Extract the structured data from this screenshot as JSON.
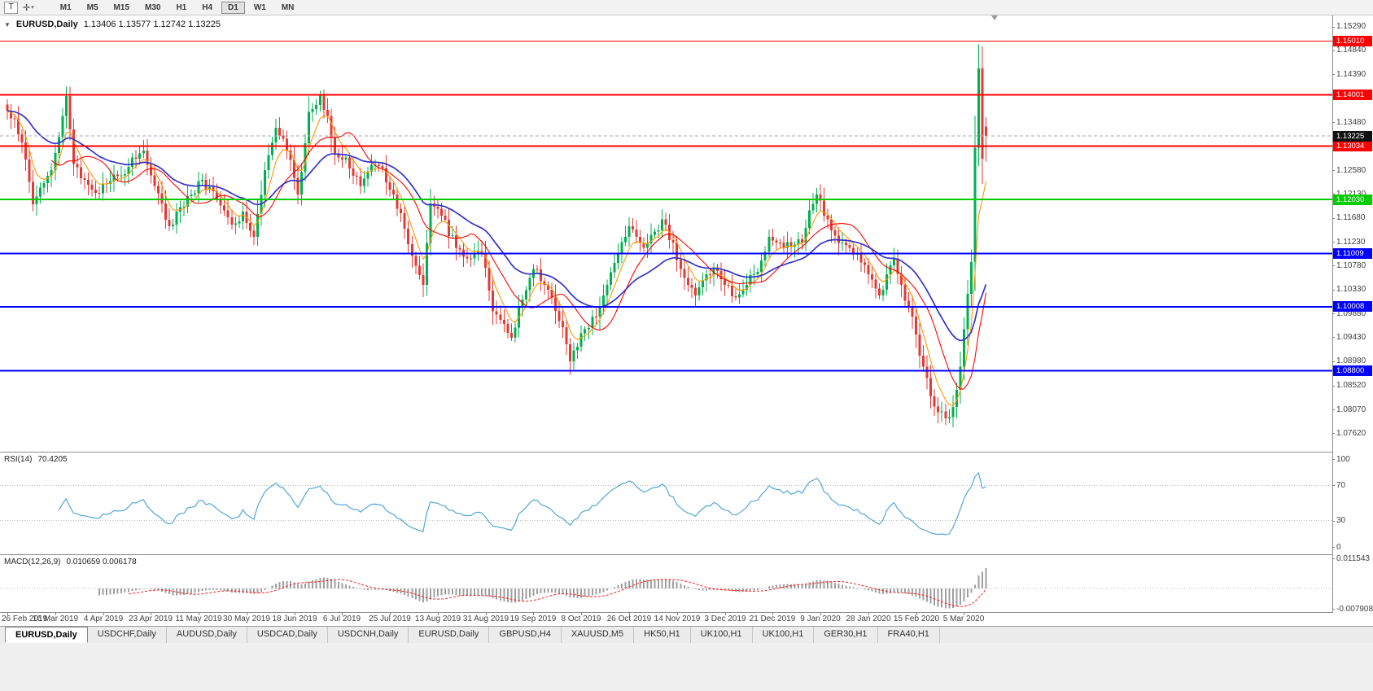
{
  "toolbar": {
    "tool_buttons": [
      {
        "name": "text-tool",
        "label": "T"
      },
      {
        "name": "cursor-tool",
        "label": "✛"
      }
    ],
    "timeframes": [
      "M1",
      "M5",
      "M15",
      "M30",
      "H1",
      "H4",
      "D1",
      "W1",
      "MN"
    ],
    "active_timeframe": "D1"
  },
  "chart": {
    "collapse_icon": "▼",
    "symbol": "EURUSD,Daily",
    "ohlc_text": "1.13406 1.13577 1.12742 1.13225",
    "y_ticks": [
      "1.15290",
      "1.14840",
      "1.14390",
      "1.13940",
      "1.13480",
      "1.13030",
      "1.12580",
      "1.12130",
      "1.11680",
      "1.11230",
      "1.10780",
      "1.10330",
      "1.09880",
      "1.09430",
      "1.08980",
      "1.08520",
      "1.08070",
      "1.07620"
    ],
    "levels": [
      {
        "label": "1.15010",
        "value": 1.1501,
        "color": "#ff0000",
        "width": 1
      },
      {
        "label": "1.14001",
        "value": 1.14001,
        "color": "#ff0000",
        "width": 2
      },
      {
        "label": "1.13034",
        "value": 1.13034,
        "color": "#ff0000",
        "width": 2
      },
      {
        "label": "1.12030",
        "value": 1.1203,
        "color": "#00cc00",
        "width": 2
      },
      {
        "label": "1.11009",
        "value": 1.11009,
        "color": "#0000ff",
        "width": 2
      },
      {
        "label": "1.10008",
        "value": 1.10008,
        "color": "#0000ff",
        "width": 2
      },
      {
        "label": "1.08800",
        "value": 1.088,
        "color": "#0000ff",
        "width": 2
      }
    ],
    "current_price": {
      "label": "1.13225",
      "value": 1.13225
    }
  },
  "rsi": {
    "title": "RSI(14)",
    "value": "70.4205",
    "ticks": [
      "100",
      "70",
      "30",
      "0"
    ],
    "levels": [
      70,
      30
    ]
  },
  "macd": {
    "title": "MACD(12,26,9)",
    "values": "0.010659 0.006178",
    "ticks": [
      "0.011543",
      "-0.007908"
    ]
  },
  "x_axis": {
    "dates": [
      "26 Feb 2019",
      "16 Mar 2019",
      "4 Apr 2019",
      "23 Apr 2019",
      "11 May 2019",
      "30 May 2019",
      "18 Jun 2019",
      "6 Jul 2019",
      "25 Jul 2019",
      "13 Aug 2019",
      "31 Aug 2019",
      "19 Sep 2019",
      "8 Oct 2019",
      "26 Oct 2019",
      "14 Nov 2019",
      "3 Dec 2019",
      "21 Dec 2019",
      "9 Jan 2020",
      "28 Jan 2020",
      "15 Feb 2020",
      "5 Mar 2020"
    ],
    "label_bar_step": 13
  },
  "tabs": {
    "active_index": 0,
    "items": [
      "EURUSD,Daily",
      "USDCHF,Daily",
      "AUDUSD,Daily",
      "USDCAD,Daily",
      "USDCNH,Daily",
      "EURUSD,Daily",
      "GBPUSD,H4",
      "XAUUSD,M5",
      "HK50,H1",
      "UK100,H1",
      "UK100,H1",
      "GER30,H1",
      "FRA40,H1"
    ]
  },
  "chart_data": {
    "type": "candlestick",
    "symbol": "EURUSD",
    "timeframe": "Daily",
    "bars": 267,
    "price_range": [
      1.0735,
      1.1542
    ],
    "close_anchors": [
      [
        0,
        1.137
      ],
      [
        2,
        1.1355
      ],
      [
        4,
        1.131
      ],
      [
        7,
        1.1194
      ],
      [
        9,
        1.1225
      ],
      [
        12,
        1.1258
      ],
      [
        14,
        1.132
      ],
      [
        16,
        1.1398
      ],
      [
        18,
        1.127
      ],
      [
        21,
        1.124
      ],
      [
        24,
        1.1215
      ],
      [
        27,
        1.1232
      ],
      [
        31,
        1.1248
      ],
      [
        34,
        1.1282
      ],
      [
        37,
        1.1295
      ],
      [
        40,
        1.1228
      ],
      [
        44,
        1.1152
      ],
      [
        47,
        1.1188
      ],
      [
        50,
        1.1212
      ],
      [
        53,
        1.124
      ],
      [
        56,
        1.1218
      ],
      [
        59,
        1.1182
      ],
      [
        62,
        1.1158
      ],
      [
        64,
        1.118
      ],
      [
        67,
        1.1132
      ],
      [
        70,
        1.1258
      ],
      [
        73,
        1.1338
      ],
      [
        76,
        1.1295
      ],
      [
        79,
        1.1212
      ],
      [
        82,
        1.1368
      ],
      [
        85,
        1.14
      ],
      [
        87,
        1.136
      ],
      [
        89,
        1.1288
      ],
      [
        92,
        1.1282
      ],
      [
        96,
        1.1228
      ],
      [
        99,
        1.1268
      ],
      [
        102,
        1.1262
      ],
      [
        105,
        1.1212
      ],
      [
        108,
        1.1148
      ],
      [
        111,
        1.1078
      ],
      [
        113,
        1.1042
      ],
      [
        115,
        1.1195
      ],
      [
        118,
        1.1172
      ],
      [
        122,
        1.1112
      ],
      [
        125,
        1.1092
      ],
      [
        129,
        1.11
      ],
      [
        132,
        1.0992
      ],
      [
        135,
        1.0968
      ],
      [
        137,
        1.0942
      ],
      [
        139,
        1.1002
      ],
      [
        141,
        1.1032
      ],
      [
        143,
        1.1072
      ],
      [
        146,
        1.1042
      ],
      [
        148,
        1.1018
      ],
      [
        151,
        1.0962
      ],
      [
        153,
        1.0898
      ],
      [
        155,
        1.0925
      ],
      [
        157,
        1.0958
      ],
      [
        159,
        1.0982
      ],
      [
        161,
        1.1002
      ],
      [
        163,
        1.1042
      ],
      [
        166,
        1.1102
      ],
      [
        169,
        1.1152
      ],
      [
        171,
        1.1132
      ],
      [
        173,
        1.1112
      ],
      [
        176,
        1.1142
      ],
      [
        178,
        1.1165
      ],
      [
        181,
        1.1122
      ],
      [
        183,
        1.1072
      ],
      [
        185,
        1.1042
      ],
      [
        187,
        1.1022
      ],
      [
        190,
        1.1062
      ],
      [
        192,
        1.1075
      ],
      [
        195,
        1.1042
      ],
      [
        198,
        1.1018
      ],
      [
        201,
        1.1042
      ],
      [
        203,
        1.1062
      ],
      [
        205,
        1.1088
      ],
      [
        207,
        1.1132
      ],
      [
        209,
        1.1122
      ],
      [
        211,
        1.1112
      ],
      [
        214,
        1.1118
      ],
      [
        216,
        1.1122
      ],
      [
        218,
        1.1182
      ],
      [
        220,
        1.1212
      ],
      [
        222,
        1.1172
      ],
      [
        224,
        1.1145
      ],
      [
        227,
        1.1122
      ],
      [
        229,
        1.1112
      ],
      [
        231,
        1.1102
      ],
      [
        234,
        1.1062
      ],
      [
        237,
        1.1022
      ],
      [
        239,
        1.1062
      ],
      [
        241,
        1.1092
      ],
      [
        243,
        1.1042
      ],
      [
        245,
        1.1002
      ],
      [
        247,
        1.0948
      ],
      [
        249,
        1.0888
      ],
      [
        251,
        1.0832
      ],
      [
        253,
        1.0802
      ],
      [
        255,
        1.079
      ],
      [
        257,
        1.0812
      ],
      [
        259,
        1.0888
      ],
      [
        260,
        1.0958
      ],
      [
        261,
        1.1025
      ],
      [
        262,
        1.1085
      ],
      [
        263,
        1.13
      ],
      [
        264,
        1.145
      ],
      [
        265,
        1.128
      ],
      [
        266,
        1.13225
      ]
    ],
    "last_bar": {
      "open": 1.13406,
      "high": 1.13577,
      "low": 1.12742,
      "close": 1.13225
    },
    "extremes": {
      "high_index": 264,
      "high": 1.1495,
      "low_index": 255,
      "low": 1.0778
    },
    "indicators": {
      "ma_fast": {
        "period": 6,
        "color": "#ff9800"
      },
      "ma_mid": {
        "period": 13,
        "color": "#ff0000"
      },
      "ma_slow": {
        "period": 30,
        "color": "#3333cc"
      },
      "rsi": {
        "period": 14,
        "last": 70.4205
      },
      "macd": {
        "fast": 12,
        "slow": 26,
        "signal": 9,
        "last_main": 0.010659,
        "last_signal": 0.006178
      }
    }
  },
  "colors": {
    "bull": "#00b050",
    "bear": "#e53935",
    "background": "#ffffff",
    "axis_text": "#3f3f3f",
    "grid": "#bdbdbd",
    "rsi_line": "#53a6d8",
    "macd_signal": "#ff1f1f",
    "macd_hist": "#9f9f9f",
    "current_price_box": "#111111"
  }
}
